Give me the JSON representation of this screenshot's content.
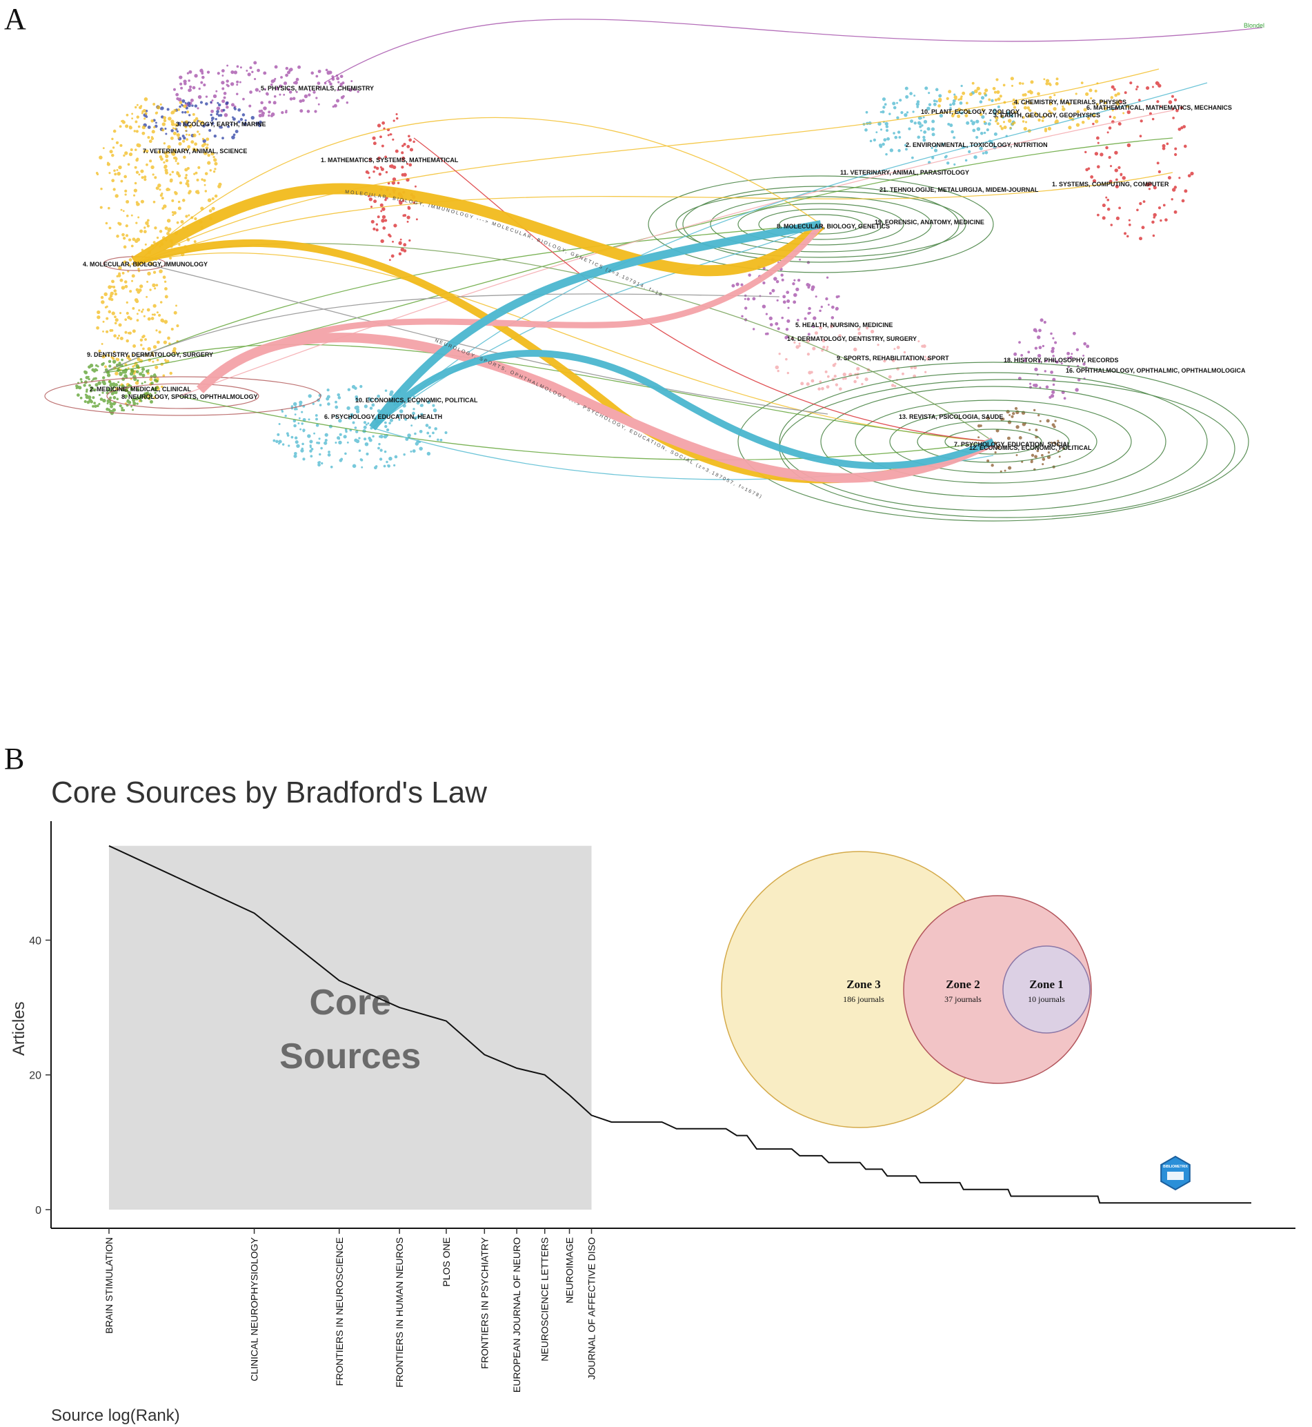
{
  "panel_a": {
    "letter": "A",
    "legend_text": "Blondel",
    "left_clusters": [
      "5. PHYSICS, MATERIALS, CHEMISTRY",
      "3. ECOLOGY, EARTH, MARINE",
      "7. VETERINARY, ANIMAL, SCIENCE",
      "1. MATHEMATICS, SYSTEMS, MATHEMATICAL",
      "4. MOLECULAR, BIOLOGY, IMMUNOLOGY",
      "9. DENTISTRY, DERMATOLOGY, SURGERY",
      "2. MEDICINE, MEDICAL, CLINICAL",
      "8. NEUROLOGY, SPORTS, OPHTHALMOLOGY",
      "10. ECONOMICS, ECONOMIC, POLITICAL",
      "6. PSYCHOLOGY, EDUCATION, HEALTH"
    ],
    "right_clusters": [
      "4. CHEMISTRY, MATERIALS, PHYSICS",
      "6. MATHEMATICAL, MATHEMATICS, MECHANICS",
      "10. PLANT, ECOLOGY, ZOOLOGY",
      "3. EARTH, GEOLOGY, GEOPHYSICS",
      "2. ENVIRONMENTAL, TOXICOLOGY, NUTRITION",
      "11. VETERINARY, ANIMAL, PARASITOLOGY",
      "21. TEHNOLOGIJE, METALURGIJA, MIDEM-JOURNAL",
      "1. SYSTEMS, COMPUTING, COMPUTER",
      "8. MOLECULAR, BIOLOGY, GENETICS",
      "19. FORENSIC, ANATOMY, MEDICINE",
      "5. HEALTH, NURSING, MEDICINE",
      "14. DERMATOLOGY, DENTISTRY, SURGERY",
      "9. SPORTS, REHABILITATION, SPORT",
      "18. HISTORY, PHILOSOPHY, RECORDS",
      "16. OPHTHALMOLOGY, OPHTHALMIC, OPHTHALMOLOGICA",
      "13. REVISTA, PSICOLOGIA, SAUDE",
      "7. PSYCHOLOGY, EDUCATION, SOCIAL",
      "12. ECONOMICS, ECONOMIC, POLITICAL"
    ],
    "flow_labels": [
      "MOLECULAR, BIOLOGY, IMMUNOLOGY ---> MOLECULAR, BIOLOGY, GENETICS (z=3.107914, f=1828)",
      "NEUROLOGY, SPORTS, OPHTHALMOLOGY ---> PSYCHOLOGY, EDUCATION, SOCIAL (z=3.187057, f=1678)"
    ],
    "colors": {
      "yellow": "#f2bb1d",
      "pink": "#f4a3a8",
      "cyan": "#4bb7cf",
      "green": "#5aa02c",
      "purple": "#a24ba8",
      "blue": "#2b3fa4",
      "red": "#d9262a",
      "ring": "#3f7d3a"
    }
  },
  "panel_b": {
    "letter": "B",
    "core_label": [
      "Core",
      "Sources"
    ],
    "venn": [
      {
        "zone": "Zone 3",
        "count": "186 journals",
        "color": "#f9edc4",
        "stroke": "#d4aa4a"
      },
      {
        "zone": "Zone 2",
        "count": "37 journals",
        "color": "#f2c4c6",
        "stroke": "#b3565d"
      },
      {
        "zone": "Zone 1",
        "count": "10 journals",
        "color": "#dcd0e4",
        "stroke": "#8a76a6"
      }
    ],
    "logo_text": "BIBLIOMETRIX"
  },
  "chart_data": {
    "type": "line",
    "title": "Core Sources by Bradford's Law",
    "xlabel": "Source log(Rank)",
    "ylabel": "Articles",
    "ylim": [
      0,
      55
    ],
    "yticks": [
      0,
      20,
      40
    ],
    "x_scale": "log",
    "core_zone_ranks": [
      1,
      10
    ],
    "x_tick_labels": [
      {
        "rank": 1,
        "label": "BRAIN STIMULATION"
      },
      {
        "rank": 2,
        "label": "CLINICAL NEUROPHYSIOLOGY"
      },
      {
        "rank": 3,
        "label": "FRONTIERS IN NEUROSCIENCE"
      },
      {
        "rank": 4,
        "label": "FRONTIERS IN HUMAN NEUROS"
      },
      {
        "rank": 5,
        "label": "PLOS ONE"
      },
      {
        "rank": 6,
        "label": "FRONTIERS IN PSYCHIATRY"
      },
      {
        "rank": 7,
        "label": "EUROPEAN JOURNAL OF NEURO"
      },
      {
        "rank": 8,
        "label": "NEUROSCIENCE LETTERS"
      },
      {
        "rank": 9,
        "label": "NEUROIMAGE"
      },
      {
        "rank": 10,
        "label": "JOURNAL OF AFFECTIVE DISO"
      }
    ],
    "series": [
      {
        "points": [
          [
            1,
            54
          ],
          [
            2,
            44
          ],
          [
            3,
            34
          ],
          [
            4,
            30
          ],
          [
            5,
            28
          ],
          [
            6,
            23
          ],
          [
            7,
            21
          ],
          [
            8,
            20
          ],
          [
            9,
            17
          ],
          [
            10,
            14
          ],
          [
            11,
            13
          ],
          [
            14,
            13
          ],
          [
            15,
            12
          ],
          [
            19,
            12
          ],
          [
            20,
            11
          ],
          [
            21,
            11
          ],
          [
            22,
            9
          ],
          [
            26,
            9
          ],
          [
            27,
            8
          ],
          [
            30,
            8
          ],
          [
            31,
            7
          ],
          [
            36,
            7
          ],
          [
            37,
            6
          ],
          [
            40,
            6
          ],
          [
            41,
            5
          ],
          [
            47,
            5
          ],
          [
            48,
            4
          ],
          [
            58,
            4
          ],
          [
            59,
            3
          ],
          [
            73,
            3
          ],
          [
            74,
            2
          ],
          [
            112,
            2
          ],
          [
            113,
            1
          ],
          [
            233,
            1
          ]
        ]
      }
    ]
  }
}
